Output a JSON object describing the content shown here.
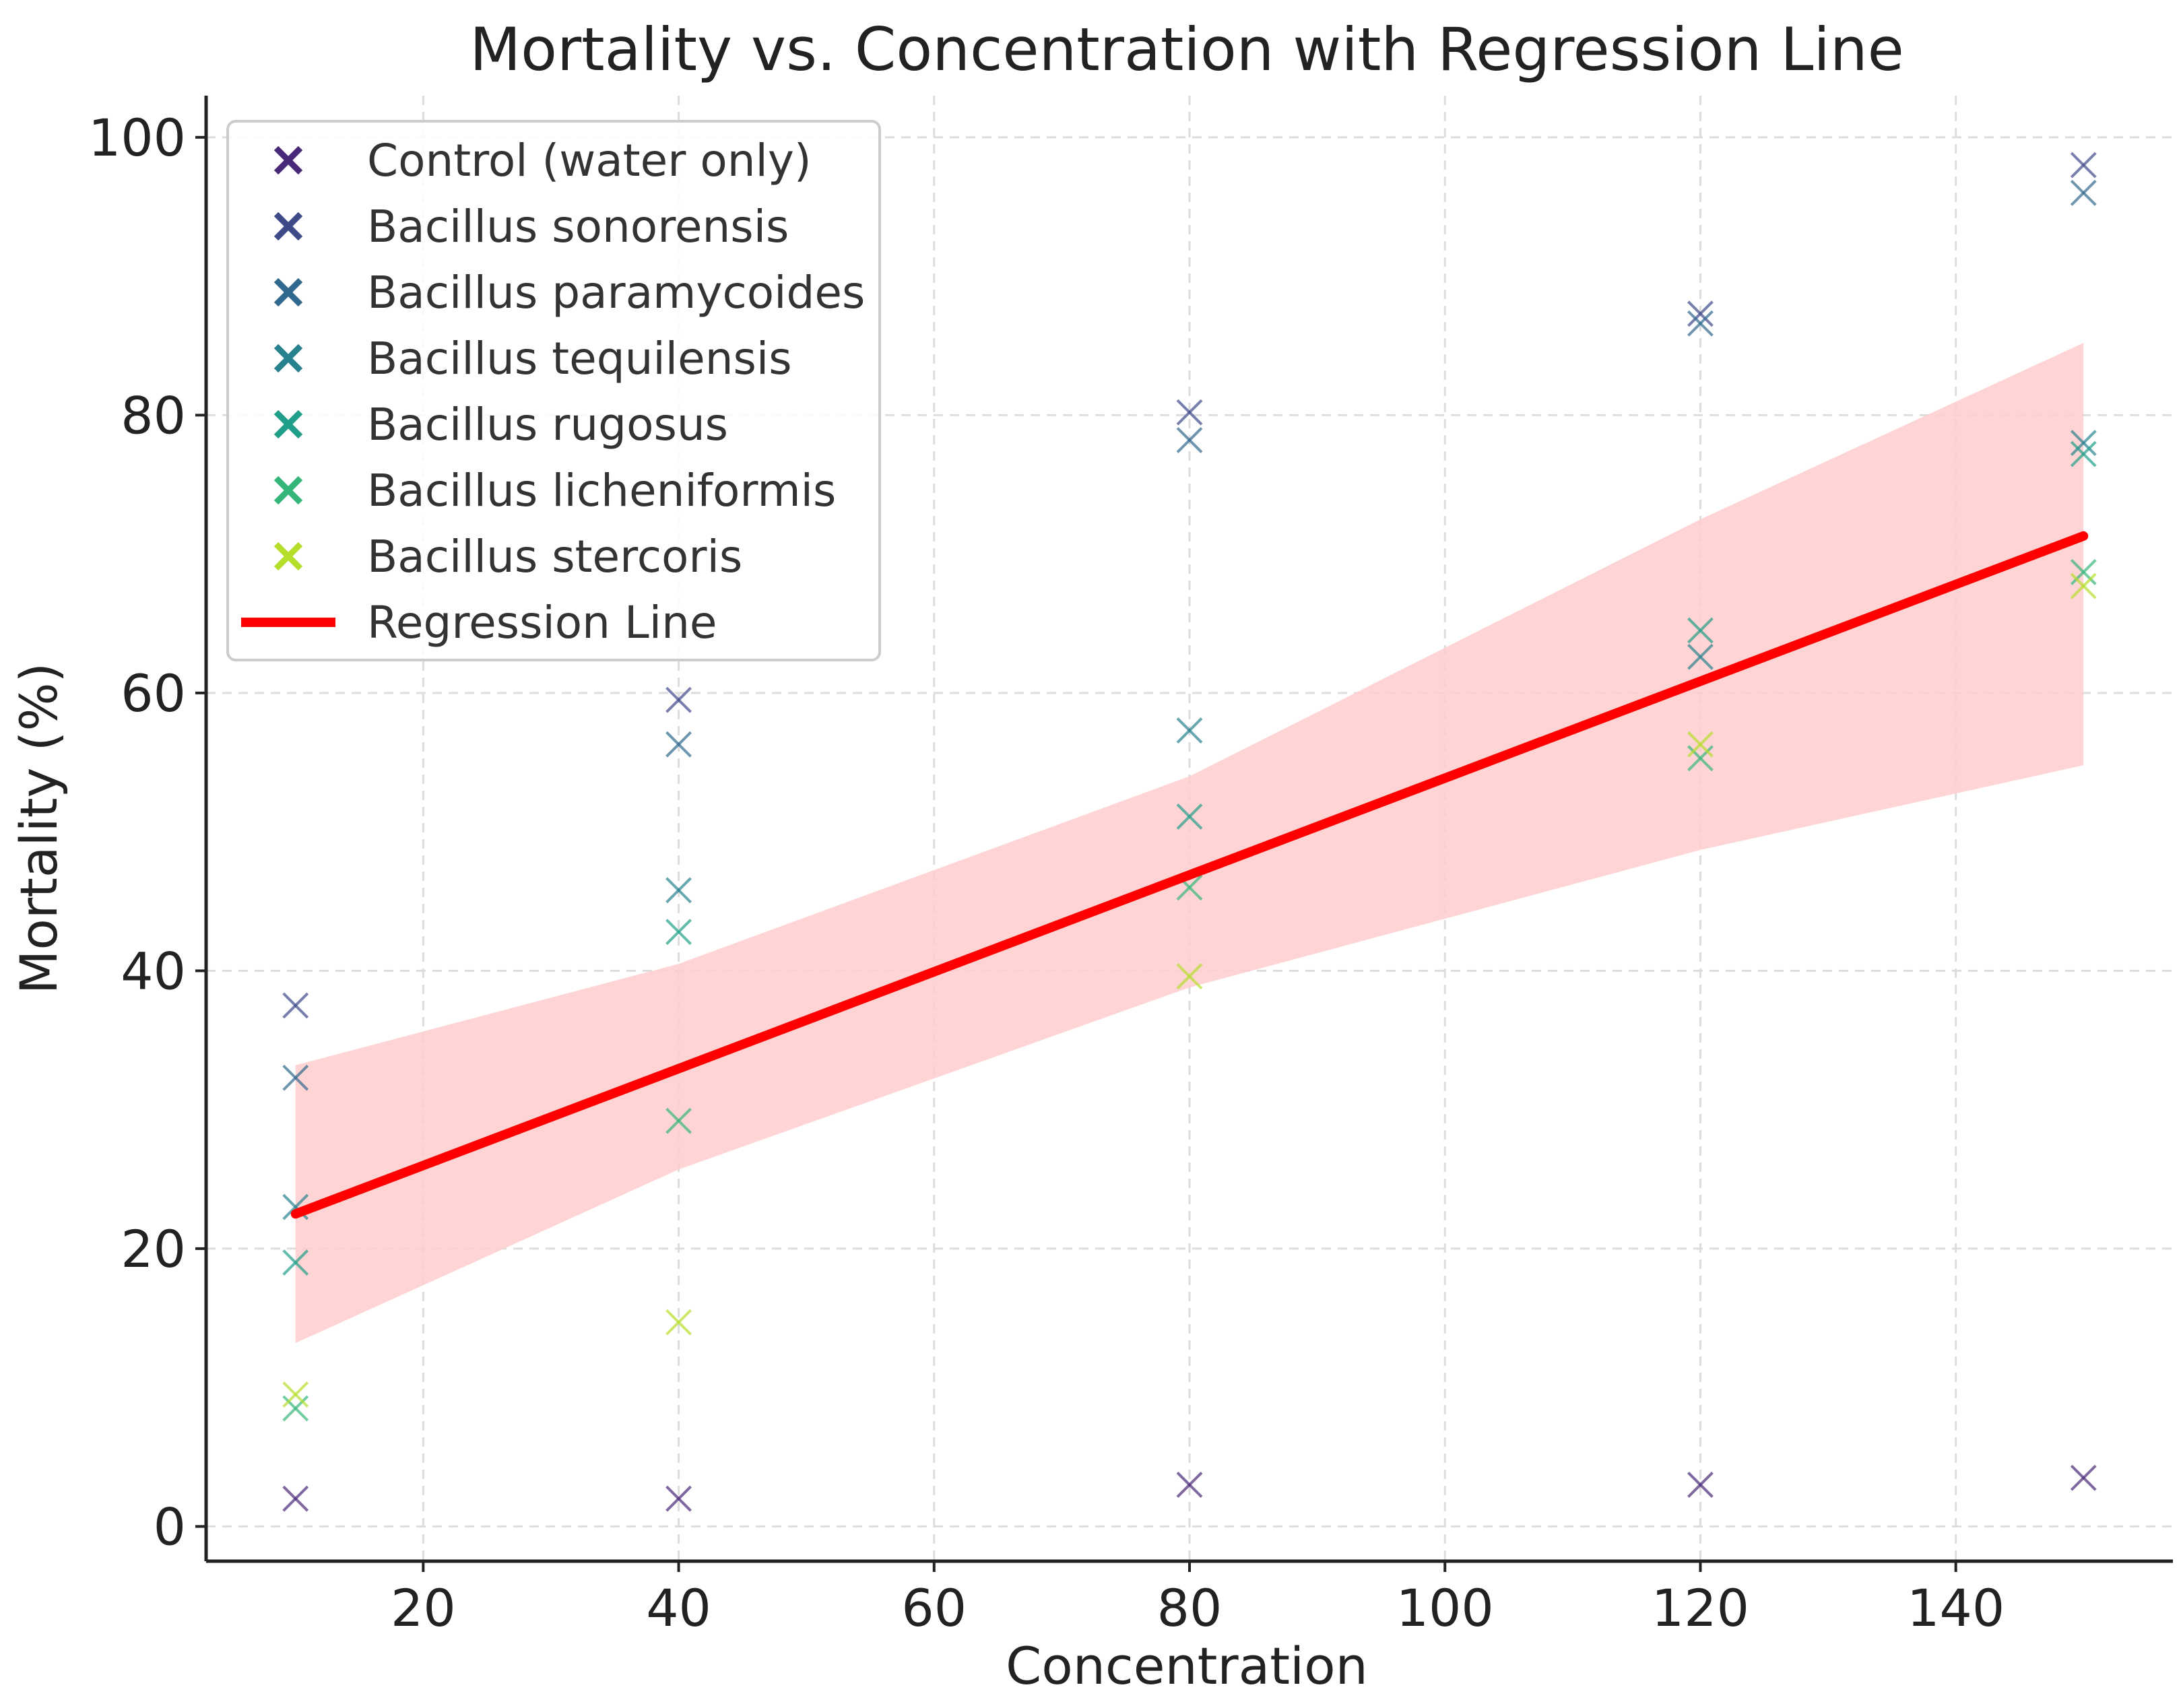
{
  "chart_data": {
    "type": "scatter",
    "title": "Mortality vs. Concentration with Regression Line",
    "xlabel": "Concentration",
    "ylabel": "Mortality (%)",
    "xlim": [
      3,
      157
    ],
    "ylim": [
      -2.5,
      103
    ],
    "xticks": [
      20,
      40,
      60,
      80,
      100,
      120,
      140
    ],
    "yticks": [
      0,
      20,
      40,
      60,
      80,
      100
    ],
    "grid": true,
    "legend_position": "top-left",
    "marker": "x",
    "series": [
      {
        "name": "Control (water only)",
        "color": "#482878",
        "points": [
          [
            10,
            2
          ],
          [
            40,
            2
          ],
          [
            80,
            3
          ],
          [
            120,
            3
          ],
          [
            150,
            3.5
          ]
        ]
      },
      {
        "name": "Bacillus sonorensis",
        "color": "#3e4989",
        "points": [
          [
            10,
            37.5
          ],
          [
            40,
            59.5
          ],
          [
            80,
            80.2
          ],
          [
            120,
            87.3
          ],
          [
            150,
            98
          ]
        ]
      },
      {
        "name": "Bacillus paramycoides",
        "color": "#31688e",
        "points": [
          [
            10,
            32.3
          ],
          [
            40,
            56.3
          ],
          [
            80,
            78.2
          ],
          [
            120,
            86.6
          ],
          [
            150,
            96
          ]
        ]
      },
      {
        "name": "Bacillus tequilensis",
        "color": "#26828e",
        "points": [
          [
            10,
            23
          ],
          [
            40,
            45.8
          ],
          [
            80,
            57.3
          ],
          [
            120,
            62.6
          ],
          [
            150,
            78
          ]
        ]
      },
      {
        "name": "Bacillus rugosus",
        "color": "#1f9e89",
        "points": [
          [
            10,
            19
          ],
          [
            40,
            42.8
          ],
          [
            80,
            51.1
          ],
          [
            120,
            64.5
          ],
          [
            150,
            77.2
          ]
        ]
      },
      {
        "name": "Bacillus licheniformis",
        "color": "#35b779",
        "points": [
          [
            10,
            8.5
          ],
          [
            40,
            29.2
          ],
          [
            80,
            46
          ],
          [
            120,
            55.3
          ],
          [
            150,
            68.7
          ]
        ]
      },
      {
        "name": "Bacillus stercoris",
        "color": "#b5de2b",
        "points": [
          [
            10,
            9.5
          ],
          [
            40,
            14.7
          ],
          [
            80,
            39.6
          ],
          [
            120,
            56.3
          ],
          [
            150,
            67.7
          ]
        ]
      }
    ],
    "regression": {
      "name": "Regression Line",
      "color": "#ff0000",
      "band_color": "#ffcccc",
      "points": [
        [
          10,
          22.5
        ],
        [
          150,
          71.3
        ]
      ],
      "band_upper": [
        [
          10,
          33.2
        ],
        [
          40,
          40.5
        ],
        [
          80,
          54
        ],
        [
          120,
          72.5
        ],
        [
          150,
          85.2
        ]
      ],
      "band_lower": [
        [
          10,
          13.2
        ],
        [
          40,
          25.7
        ],
        [
          80,
          38.8
        ],
        [
          120,
          48.7
        ],
        [
          150,
          54.8
        ]
      ]
    }
  }
}
